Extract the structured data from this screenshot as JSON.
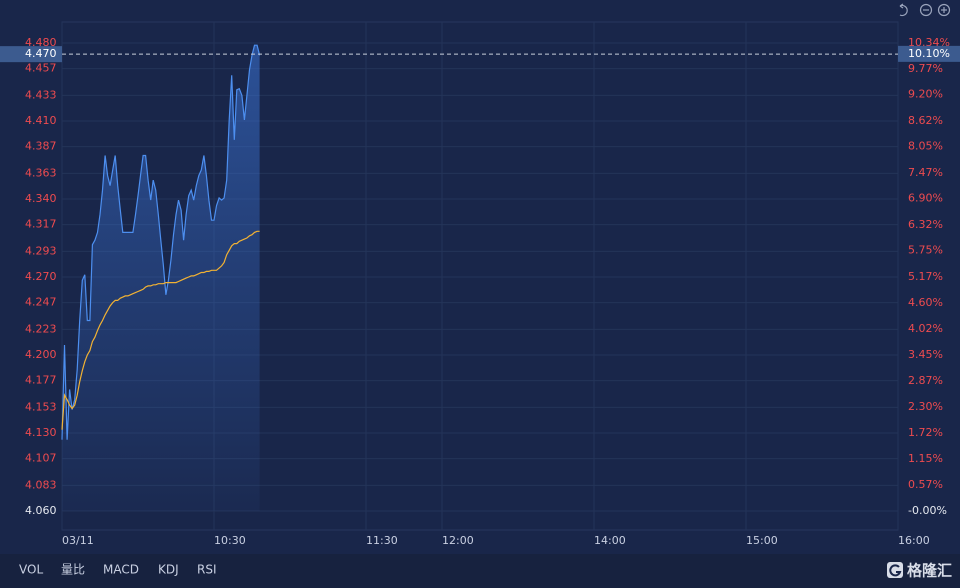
{
  "chart_data": {
    "type": "line",
    "x": [
      "09:30",
      "09:31",
      "09:32",
      "09:33",
      "09:34",
      "09:35",
      "09:36",
      "09:37",
      "09:38",
      "09:39",
      "09:40",
      "09:41",
      "09:42",
      "09:43",
      "09:44",
      "09:45",
      "09:46",
      "09:47",
      "09:48",
      "09:49",
      "09:50",
      "09:51",
      "09:52",
      "09:53",
      "09:54",
      "09:55",
      "09:56",
      "09:57",
      "09:58",
      "09:59",
      "10:00",
      "10:01",
      "10:02",
      "10:03",
      "10:04",
      "10:05",
      "10:06",
      "10:07",
      "10:08",
      "10:09",
      "10:10",
      "10:11",
      "10:12",
      "10:13",
      "10:14",
      "10:15",
      "10:16",
      "10:17",
      "10:18",
      "10:19",
      "10:20",
      "10:21",
      "10:22",
      "10:23",
      "10:24",
      "10:25",
      "10:26",
      "10:27",
      "10:28",
      "10:29",
      "10:30",
      "10:31",
      "10:32",
      "10:33",
      "10:34",
      "10:35",
      "10:36",
      "10:37",
      "10:38",
      "10:39",
      "10:40",
      "10:41",
      "10:42",
      "10:43",
      "10:44",
      "10:45",
      "10:46",
      "10:47",
      "10:48"
    ],
    "series": [
      {
        "color": "#4d8ff0",
        "values": [
          4.124,
          4.209,
          4.124,
          4.169,
          4.151,
          4.16,
          4.187,
          4.231,
          4.267,
          4.272,
          4.231,
          4.231,
          4.299,
          4.303,
          4.31,
          4.326,
          4.348,
          4.379,
          4.361,
          4.352,
          4.366,
          4.379,
          4.352,
          4.33,
          4.31,
          4.31,
          4.31,
          4.31,
          4.31,
          4.326,
          4.343,
          4.361,
          4.379,
          4.379,
          4.357,
          4.339,
          4.357,
          4.348,
          4.326,
          4.303,
          4.281,
          4.254,
          4.267,
          4.285,
          4.308,
          4.326,
          4.339,
          4.33,
          4.303,
          4.326,
          4.343,
          4.348,
          4.339,
          4.352,
          4.361,
          4.366,
          4.379,
          4.361,
          4.339,
          4.321,
          4.321,
          4.334,
          4.341,
          4.339,
          4.341,
          4.357,
          4.411,
          4.451,
          4.393,
          4.438,
          4.439,
          4.433,
          4.411,
          4.433,
          4.456,
          4.469,
          4.478,
          4.478,
          4.469
        ]
      },
      {
        "color": "#f2b233",
        "values": [
          4.133,
          4.164,
          4.16,
          4.155,
          4.152,
          4.155,
          4.164,
          4.176,
          4.186,
          4.194,
          4.2,
          4.204,
          4.212,
          4.216,
          4.222,
          4.227,
          4.231,
          4.236,
          4.24,
          4.244,
          4.247,
          4.249,
          4.249,
          4.251,
          4.252,
          4.253,
          4.253,
          4.254,
          4.255,
          4.256,
          4.257,
          4.258,
          4.259,
          4.261,
          4.262,
          4.262,
          4.263,
          4.263,
          4.264,
          4.264,
          4.264,
          4.265,
          4.265,
          4.265,
          4.265,
          4.265,
          4.266,
          4.267,
          4.268,
          4.269,
          4.27,
          4.271,
          4.271,
          4.272,
          4.273,
          4.274,
          4.274,
          4.275,
          4.275,
          4.276,
          4.276,
          4.276,
          4.278,
          4.28,
          4.283,
          4.29,
          4.294,
          4.298,
          4.3,
          4.3,
          4.302,
          4.303,
          4.304,
          4.305,
          4.307,
          4.308,
          4.31,
          4.311,
          4.311
        ]
      }
    ],
    "xlim": [
      "09:30",
      "16:00"
    ],
    "xbreak": [
      "12:00",
      "13:00"
    ],
    "xticks": [
      {
        "value": "09:30",
        "label": "03/11"
      },
      "10:30",
      "11:30",
      "12:00",
      "14:00",
      "15:00",
      "16:00"
    ],
    "ylim": [
      4.06,
      4.48
    ],
    "yticks": [
      {
        "value": 4.48,
        "label": "4.480"
      },
      {
        "value": 4.457,
        "label": "4.457"
      },
      {
        "value": 4.433,
        "label": "4.433"
      },
      {
        "value": 4.41,
        "label": "4.410"
      },
      {
        "value": 4.387,
        "label": "4.387"
      },
      {
        "value": 4.363,
        "label": "4.363"
      },
      {
        "value": 4.34,
        "label": "4.340"
      },
      {
        "value": 4.317,
        "label": "4.317"
      },
      {
        "value": 4.293,
        "label": "4.293"
      },
      {
        "value": 4.27,
        "label": "4.270"
      },
      {
        "value": 4.247,
        "label": "4.247"
      },
      {
        "value": 4.223,
        "label": "4.223"
      },
      {
        "value": 4.2,
        "label": "4.200"
      },
      {
        "value": 4.177,
        "label": "4.177"
      },
      {
        "value": 4.153,
        "label": "4.153"
      },
      {
        "value": 4.13,
        "label": "4.130"
      },
      {
        "value": 4.107,
        "label": "4.107"
      },
      {
        "value": 4.083,
        "label": "4.083"
      },
      {
        "value": 4.06,
        "label": "4.060"
      }
    ],
    "y2lim": [
      0,
      10.34
    ],
    "y2ticks": [
      {
        "value": 10.34,
        "label": "10.34%"
      },
      {
        "value": 9.77,
        "label": "9.77%"
      },
      {
        "value": 9.2,
        "label": "9.20%"
      },
      {
        "value": 8.62,
        "label": "8.62%"
      },
      {
        "value": 8.05,
        "label": "8.05%"
      },
      {
        "value": 7.47,
        "label": "7.47%"
      },
      {
        "value": 6.9,
        "label": "6.90%"
      },
      {
        "value": 6.32,
        "label": "6.32%"
      },
      {
        "value": 5.75,
        "label": "5.75%"
      },
      {
        "value": 5.17,
        "label": "5.17%"
      },
      {
        "value": 4.6,
        "label": "4.60%"
      },
      {
        "value": 4.02,
        "label": "4.02%"
      },
      {
        "value": 3.45,
        "label": "3.45%"
      },
      {
        "value": 2.87,
        "label": "2.87%"
      },
      {
        "value": 2.3,
        "label": "2.30%"
      },
      {
        "value": 1.72,
        "label": "1.72%"
      },
      {
        "value": 1.15,
        "label": "1.15%"
      },
      {
        "value": 0.57,
        "label": "0.57%"
      },
      {
        "value": 0,
        "label": "-0.00%"
      }
    ],
    "last_price": {
      "value": 4.47,
      "label": "4.470"
    },
    "last_change": {
      "value": 10.1,
      "label": "10.10%"
    },
    "grid": true,
    "up_color": "#ee4b4f"
  },
  "tabs": [
    "VOL",
    "量比",
    "MACD",
    "KDJ",
    "RSI"
  ],
  "logo": "格隆汇"
}
